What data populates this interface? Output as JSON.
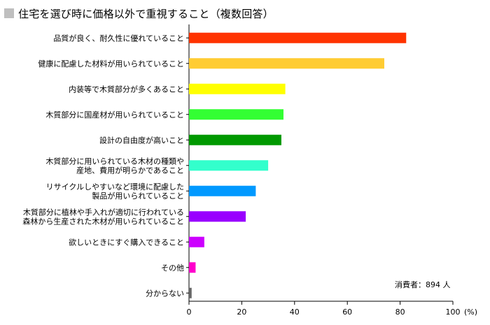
{
  "title": "住宅を選び時に価格以外で重視すること（複数回答）",
  "note": "消費者：894 人",
  "chart_data": {
    "type": "bar",
    "orientation": "horizontal",
    "title": "住宅を選び時に価格以外で重視すること（複数回答）",
    "xlabel": "(%)",
    "ylabel": "",
    "xlim": [
      0,
      100
    ],
    "xticks": [
      "0",
      "20",
      "40",
      "60",
      "80",
      "100"
    ],
    "grid": false,
    "categories": [
      [
        "品質が良く、耐久性に優れていること"
      ],
      [
        "健康に配慮した材料が用いられていること"
      ],
      [
        "内装等で木質部分が多くあること"
      ],
      [
        "木質部分に国産材が用いられていること"
      ],
      [
        "設計の自由度が高いこと"
      ],
      [
        "木質部分に用いられている木材の種類や",
        "産地、費用が明らかであること"
      ],
      [
        "リサイクルしやすいなど環境に配慮した",
        "製品が用いられていること"
      ],
      [
        "木質部分に植林や手入れが適切に行われている",
        "森林から生産された木材が用いられていること"
      ],
      [
        "欲しいときにすぐ購入できること"
      ],
      [
        "その他"
      ],
      [
        "分からない"
      ]
    ],
    "values": [
      82.3,
      74.0,
      36.5,
      35.8,
      35.0,
      30.0,
      25.3,
      21.5,
      5.8,
      2.5,
      1.0
    ],
    "colors": [
      "#ff3300",
      "#ffcc33",
      "#ffff00",
      "#33ff33",
      "#009900",
      "#33ffcc",
      "#0099ff",
      "#9900ff",
      "#cc00ff",
      "#ff00cc",
      "#666666"
    ]
  }
}
